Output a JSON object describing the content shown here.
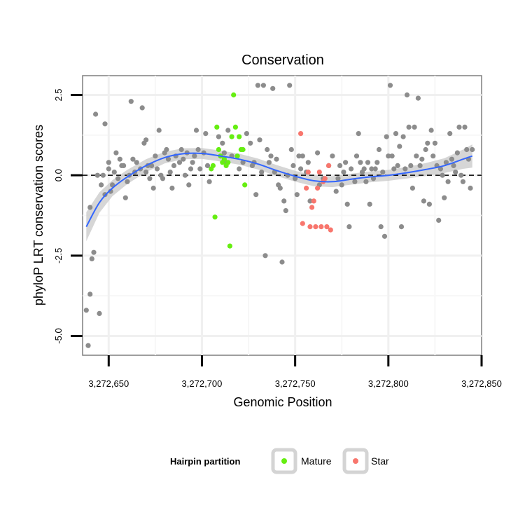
{
  "chart_data": {
    "type": "scatter",
    "title": "Conservation",
    "xlabel": "Genomic Position",
    "ylabel": "phyloP LRT conservation scores",
    "xlim": [
      3272636,
      3272850
    ],
    "ylim": [
      -5.6,
      3.1
    ],
    "x_ticks": [
      {
        "value": 3272650,
        "label": "3,272,650"
      },
      {
        "value": 3272700,
        "label": "3,272,700"
      },
      {
        "value": 3272750,
        "label": "3,272,750"
      },
      {
        "value": 3272800,
        "label": "3,272,800"
      },
      {
        "value": 3272850,
        "label": "3,272,850"
      }
    ],
    "y_ticks": [
      {
        "value": 2.5,
        "label": "2.5"
      },
      {
        "value": 0.0,
        "label": "0.0"
      },
      {
        "value": -2.5,
        "label": "-2.5"
      },
      {
        "value": -5.0,
        "label": "-5.0"
      }
    ],
    "reference_line": {
      "y": 0,
      "style": "dashed"
    },
    "grid": true,
    "legend": {
      "title": "Hairpin partition",
      "placement": "bottom",
      "entries": [
        {
          "name": "Mature",
          "color": "#66ee11"
        },
        {
          "name": "Star",
          "color": "#f8766d"
        }
      ]
    },
    "colors": {
      "other": "#8c8c8c",
      "Mature": "#66ee11",
      "Star": "#f8766d",
      "smooth": "#3366ff",
      "band": "#c8c8c8"
    },
    "series": [
      {
        "name": "Other",
        "points": [
          [
            3272638,
            -4.2
          ],
          [
            3272639,
            -5.3
          ],
          [
            3272640,
            -3.7
          ],
          [
            3272640,
            -1.0
          ],
          [
            3272641,
            -2.6
          ],
          [
            3272642,
            -2.4
          ],
          [
            3272643,
            1.9
          ],
          [
            3272644,
            0.0
          ],
          [
            3272645,
            -4.3
          ],
          [
            3272646,
            -0.3
          ],
          [
            3272647,
            0.0
          ],
          [
            3272648,
            1.6
          ],
          [
            3272648,
            -0.6
          ],
          [
            3272650,
            0.4
          ],
          [
            3272650,
            0.2
          ],
          [
            3272651,
            -0.5
          ],
          [
            3272652,
            -0.3
          ],
          [
            3272653,
            0.1
          ],
          [
            3272654,
            0.7
          ],
          [
            3272655,
            -0.1
          ],
          [
            3272656,
            0.5
          ],
          [
            3272657,
            0.3
          ],
          [
            3272658,
            0.3
          ],
          [
            3272659,
            -0.7
          ],
          [
            3272660,
            -0.2
          ],
          [
            3272661,
            0.0
          ],
          [
            3272662,
            2.3
          ],
          [
            3272663,
            0.5
          ],
          [
            3272664,
            0.1
          ],
          [
            3272665,
            0.4
          ],
          [
            3272667,
            0.2
          ],
          [
            3272668,
            2.1
          ],
          [
            3272669,
            1.0
          ],
          [
            3272670,
            1.1
          ],
          [
            3272670,
            0.1
          ],
          [
            3272671,
            0.3
          ],
          [
            3272672,
            -0.1
          ],
          [
            3272673,
            0.3
          ],
          [
            3272674,
            -0.4
          ],
          [
            3272675,
            0.6
          ],
          [
            3272676,
            0.2
          ],
          [
            3272677,
            1.4
          ],
          [
            3272678,
            0.0
          ],
          [
            3272679,
            -0.1
          ],
          [
            3272680,
            0.7
          ],
          [
            3272681,
            0.8
          ],
          [
            3272682,
            0.5
          ],
          [
            3272683,
            0.1
          ],
          [
            3272684,
            -0.4
          ],
          [
            3272685,
            0.3
          ],
          [
            3272686,
            0.6
          ],
          [
            3272688,
            0.4
          ],
          [
            3272689,
            0.8
          ],
          [
            3272690,
            0.5
          ],
          [
            3272691,
            0.0
          ],
          [
            3272692,
            0.7
          ],
          [
            3272693,
            -0.3
          ],
          [
            3272694,
            0.2
          ],
          [
            3272695,
            0.4
          ],
          [
            3272696,
            0.6
          ],
          [
            3272697,
            1.4
          ],
          [
            3272698,
            0.8
          ],
          [
            3272699,
            0.2
          ],
          [
            3272701,
            0.7
          ],
          [
            3272702,
            1.3
          ],
          [
            3272703,
            0.3
          ],
          [
            3272704,
            -0.2
          ],
          [
            3272709,
            1.2
          ],
          [
            3272710,
            0.6
          ],
          [
            3272711,
            1.0
          ],
          [
            3272712,
            0.7
          ],
          [
            3272713,
            0.4
          ],
          [
            3272714,
            1.4
          ],
          [
            3272716,
            0.6
          ],
          [
            3272720,
            0.2
          ],
          [
            3272722,
            0.4
          ],
          [
            3272724,
            1.3
          ],
          [
            3272726,
            1.0
          ],
          [
            3272727,
            0.3
          ],
          [
            3272728,
            0.4
          ],
          [
            3272729,
            -0.6
          ],
          [
            3272730,
            2.8
          ],
          [
            3272731,
            1.1
          ],
          [
            3272732,
            0.1
          ],
          [
            3272733,
            2.8
          ],
          [
            3272734,
            -2.5
          ],
          [
            3272735,
            0.8
          ],
          [
            3272736,
            0.4
          ],
          [
            3272737,
            0.6
          ],
          [
            3272738,
            2.7
          ],
          [
            3272739,
            0.1
          ],
          [
            3272740,
            0.5
          ],
          [
            3272741,
            -0.3
          ],
          [
            3272742,
            -0.4
          ],
          [
            3272743,
            -2.7
          ],
          [
            3272744,
            -0.8
          ],
          [
            3272745,
            -1.1
          ],
          [
            3272746,
            0.0
          ],
          [
            3272747,
            2.8
          ],
          [
            3272748,
            0.8
          ],
          [
            3272749,
            0.3
          ],
          [
            3272750,
            -0.1
          ],
          [
            3272751,
            -0.6
          ],
          [
            3272752,
            0.6
          ],
          [
            3272753,
            0.2
          ],
          [
            3272754,
            0.6
          ],
          [
            3272756,
            0.1
          ],
          [
            3272757,
            0.4
          ],
          [
            3272758,
            -0.8
          ],
          [
            3272762,
            0.7
          ],
          [
            3272763,
            -0.3
          ],
          [
            3272765,
            -0.1
          ],
          [
            3272768,
            0.3
          ],
          [
            3272770,
            0.6
          ],
          [
            3272772,
            -0.5
          ],
          [
            3272773,
            -0.1
          ],
          [
            3272774,
            0.3
          ],
          [
            3272775,
            -0.3
          ],
          [
            3272776,
            0.1
          ],
          [
            3272777,
            0.4
          ],
          [
            3272778,
            -0.9
          ],
          [
            3272779,
            -1.6
          ],
          [
            3272780,
            0.2
          ],
          [
            3272782,
            -0.2
          ],
          [
            3272783,
            0.6
          ],
          [
            3272784,
            1.3
          ],
          [
            3272785,
            0.4
          ],
          [
            3272786,
            0.1
          ],
          [
            3272787,
            0.2
          ],
          [
            3272788,
            -0.2
          ],
          [
            3272789,
            0.4
          ],
          [
            3272790,
            -0.9
          ],
          [
            3272791,
            0.2
          ],
          [
            3272792,
            -0.1
          ],
          [
            3272793,
            0.2
          ],
          [
            3272794,
            0.4
          ],
          [
            3272795,
            0.8
          ],
          [
            3272796,
            -1.6
          ],
          [
            3272797,
            0.1
          ],
          [
            3272798,
            -1.9
          ],
          [
            3272799,
            1.2
          ],
          [
            3272800,
            0.6
          ],
          [
            3272801,
            2.8
          ],
          [
            3272802,
            0.6
          ],
          [
            3272803,
            0.2
          ],
          [
            3272804,
            1.3
          ],
          [
            3272805,
            0.3
          ],
          [
            3272806,
            0.9
          ],
          [
            3272807,
            -1.6
          ],
          [
            3272808,
            1.2
          ],
          [
            3272809,
            0.2
          ],
          [
            3272810,
            2.5
          ],
          [
            3272811,
            1.5
          ],
          [
            3272812,
            0.3
          ],
          [
            3272813,
            -0.4
          ],
          [
            3272814,
            1.5
          ],
          [
            3272815,
            0.6
          ],
          [
            3272816,
            2.4
          ],
          [
            3272817,
            0.3
          ],
          [
            3272818,
            0.5
          ],
          [
            3272819,
            -0.8
          ],
          [
            3272820,
            0.8
          ],
          [
            3272821,
            1.0
          ],
          [
            3272822,
            -0.9
          ],
          [
            3272823,
            1.4
          ],
          [
            3272824,
            0.6
          ],
          [
            3272825,
            1.0
          ],
          [
            3272826,
            0.3
          ],
          [
            3272827,
            -1.4
          ],
          [
            3272828,
            0.2
          ],
          [
            3272829,
            0.0
          ],
          [
            3272830,
            -0.7
          ],
          [
            3272831,
            0.4
          ],
          [
            3272832,
            -0.2
          ],
          [
            3272833,
            1.3
          ],
          [
            3272834,
            0.5
          ],
          [
            3272835,
            0.3
          ],
          [
            3272836,
            0.1
          ],
          [
            3272837,
            0.7
          ],
          [
            3272838,
            1.5
          ],
          [
            3272839,
            0.0
          ],
          [
            3272840,
            -0.2
          ],
          [
            3272841,
            1.5
          ],
          [
            3272842,
            0.8
          ],
          [
            3272843,
            0.5
          ],
          [
            3272844,
            -0.4
          ],
          [
            3272845,
            0.8
          ]
        ]
      },
      {
        "name": "Mature",
        "points": [
          [
            3272705,
            0.2
          ],
          [
            3272706,
            0.3
          ],
          [
            3272707,
            -1.3
          ],
          [
            3272708,
            1.5
          ],
          [
            3272709,
            0.8
          ],
          [
            3272710,
            0.6
          ],
          [
            3272711,
            0.4
          ],
          [
            3272712,
            0.5
          ],
          [
            3272713,
            0.3
          ],
          [
            3272714,
            0.4
          ],
          [
            3272715,
            -2.2
          ],
          [
            3272716,
            1.2
          ],
          [
            3272717,
            2.5
          ],
          [
            3272718,
            1.5
          ],
          [
            3272719,
            0.6
          ],
          [
            3272720,
            1.2
          ],
          [
            3272721,
            0.8
          ],
          [
            3272722,
            0.8
          ],
          [
            3272723,
            -0.3
          ]
        ]
      },
      {
        "name": "Star",
        "points": [
          [
            3272753,
            1.3
          ],
          [
            3272754,
            -1.5
          ],
          [
            3272756,
            -0.4
          ],
          [
            3272757,
            0.1
          ],
          [
            3272758,
            -1.6
          ],
          [
            3272759,
            -1.0
          ],
          [
            3272760,
            -0.8
          ],
          [
            3272761,
            -1.6
          ],
          [
            3272762,
            -0.4
          ],
          [
            3272763,
            0.1
          ],
          [
            3272764,
            -1.6
          ],
          [
            3272765,
            -0.2
          ],
          [
            3272766,
            -0.1
          ],
          [
            3272767,
            -1.6
          ],
          [
            3272768,
            0.3
          ],
          [
            3272769,
            -1.7
          ]
        ]
      }
    ],
    "smooth": {
      "x": [
        3272638,
        3272645,
        3272652,
        3272660,
        3272670,
        3272680,
        3272690,
        3272700,
        3272710,
        3272720,
        3272730,
        3272740,
        3272750,
        3272760,
        3272770,
        3272780,
        3272790,
        3272800,
        3272810,
        3272820,
        3272830,
        3272840,
        3272845
      ],
      "y": [
        -1.6,
        -0.85,
        -0.4,
        -0.05,
        0.3,
        0.55,
        0.67,
        0.68,
        0.6,
        0.5,
        0.35,
        0.15,
        -0.03,
        -0.17,
        -0.2,
        -0.12,
        -0.05,
        0.0,
        0.08,
        0.18,
        0.3,
        0.5,
        0.6
      ],
      "se": [
        0.45,
        0.32,
        0.25,
        0.22,
        0.2,
        0.18,
        0.17,
        0.17,
        0.17,
        0.17,
        0.17,
        0.17,
        0.17,
        0.17,
        0.17,
        0.17,
        0.17,
        0.17,
        0.18,
        0.2,
        0.23,
        0.3,
        0.36
      ]
    }
  }
}
